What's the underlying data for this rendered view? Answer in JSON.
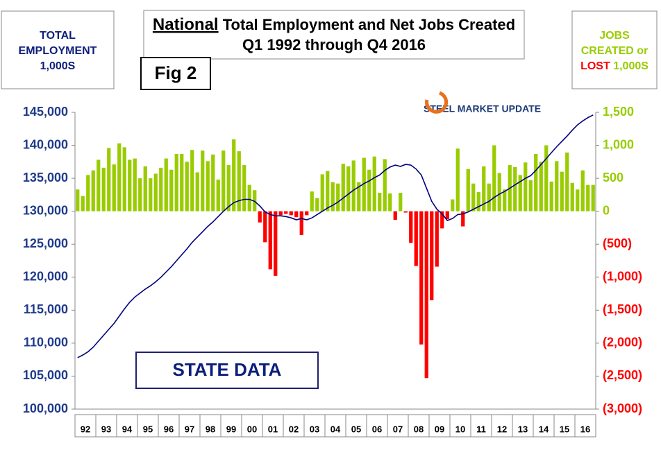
{
  "chart_data": {
    "type": "combo",
    "title": {
      "emphasis": "National",
      "rest": "Total Employment and Net Jobs Created",
      "subtitle": "Q1 1992 through Q4 2016"
    },
    "figure_label": "Fig 2",
    "left_axis_label": [
      "TOTAL",
      "EMPLOYMENT",
      "1,000S"
    ],
    "right_axis_label": [
      [
        {
          "text": "JOBS",
          "color": "#99cc00"
        }
      ],
      [
        {
          "text": "CREATED or",
          "color": "#99cc00"
        }
      ],
      [
        {
          "text": "LOST",
          "color": "#ff0000"
        },
        {
          "text": "1,000S",
          "color": "#99cc00"
        }
      ]
    ],
    "logo": "STEEL MARKET UPDATE",
    "annotation": "STATE DATA",
    "categories": [
      "92",
      null,
      null,
      null,
      "93",
      null,
      null,
      null,
      "94",
      null,
      null,
      null,
      "95",
      null,
      null,
      null,
      "96",
      null,
      null,
      null,
      "97",
      null,
      null,
      null,
      "98",
      null,
      null,
      null,
      "99",
      null,
      null,
      null,
      "00",
      null,
      null,
      null,
      "01",
      null,
      null,
      null,
      "02",
      null,
      null,
      null,
      "03",
      null,
      null,
      null,
      "04",
      null,
      null,
      null,
      "05",
      null,
      null,
      null,
      "06",
      null,
      null,
      null,
      "07",
      null,
      null,
      null,
      "08",
      null,
      null,
      null,
      "09",
      null,
      null,
      null,
      "10",
      null,
      null,
      null,
      "11",
      null,
      null,
      null,
      "12",
      null,
      null,
      null,
      "13",
      null,
      null,
      null,
      "14",
      null,
      null,
      null,
      "15",
      null,
      null,
      null,
      "16",
      null,
      null,
      null
    ],
    "series": [
      {
        "type": "bar",
        "axis": "y2",
        "color": "#99cc00",
        "negative_color": "#ff0000",
        "values": [
          330,
          230,
          550,
          620,
          780,
          660,
          960,
          710,
          1030,
          970,
          780,
          800,
          500,
          680,
          500,
          570,
          660,
          800,
          630,
          870,
          870,
          750,
          930,
          590,
          920,
          760,
          860,
          480,
          920,
          700,
          1090,
          910,
          700,
          400,
          320,
          -170,
          -470,
          -880,
          -980,
          -60,
          -40,
          -60,
          -90,
          -360,
          -60,
          300,
          200,
          560,
          610,
          440,
          420,
          720,
          680,
          770,
          440,
          810,
          630,
          830,
          280,
          790,
          270,
          -130,
          280,
          -20,
          -480,
          -830,
          -2020,
          -2530,
          -1350,
          -840,
          -260,
          -120,
          180,
          950,
          -230,
          640,
          420,
          290,
          680,
          420,
          1000,
          580,
          330,
          700,
          670,
          550,
          740,
          470,
          870,
          750,
          1000,
          450,
          760,
          600,
          890,
          430,
          330,
          620,
          400,
          400
        ]
      },
      {
        "type": "line",
        "axis": "y",
        "color": "#000080",
        "values": [
          107800,
          108200,
          108700,
          109400,
          110300,
          111200,
          112100,
          113000,
          114100,
          115200,
          116200,
          117000,
          117600,
          118200,
          118700,
          119300,
          120000,
          120800,
          121600,
          122500,
          123400,
          124300,
          125300,
          126100,
          126900,
          127700,
          128400,
          129200,
          130000,
          130700,
          131300,
          131600,
          131800,
          131800,
          131500,
          130800,
          129900,
          129500,
          129300,
          129300,
          129200,
          129000,
          128700,
          128900,
          128700,
          129000,
          129500,
          130000,
          130500,
          130900,
          131400,
          132000,
          132600,
          133200,
          133700,
          134200,
          134600,
          135100,
          135500,
          136200,
          136700,
          137000,
          136800,
          137100,
          137000,
          136400,
          135500,
          133500,
          131500,
          130300,
          129600,
          128600,
          128900,
          129500,
          129600,
          129900,
          130300,
          130700,
          131100,
          131500,
          132100,
          132600,
          133000,
          133500,
          134000,
          134500,
          135000,
          135400,
          136200,
          137100,
          138000,
          138900,
          139800,
          140600,
          141400,
          142300,
          143100,
          143700,
          144200,
          144600
        ]
      }
    ],
    "ylim": [
      100000,
      145000
    ],
    "yticks": [
      {
        "value": 100000,
        "label": "100,000"
      },
      {
        "value": 105000,
        "label": "105,000"
      },
      {
        "value": 110000,
        "label": "110,000"
      },
      {
        "value": 115000,
        "label": "115,000"
      },
      {
        "value": 120000,
        "label": "120,000"
      },
      {
        "value": 125000,
        "label": "125,000"
      },
      {
        "value": 130000,
        "label": "130,000"
      },
      {
        "value": 135000,
        "label": "135,000"
      },
      {
        "value": 140000,
        "label": "140,000"
      },
      {
        "value": 145000,
        "label": "145,000"
      }
    ],
    "y2lim": [
      -3000,
      1500
    ],
    "y2ticks": [
      {
        "value": -3000,
        "label": "(3,000)"
      },
      {
        "value": -2500,
        "label": "(2,500)"
      },
      {
        "value": -2000,
        "label": "(2,000)"
      },
      {
        "value": -1500,
        "label": "(1,500)"
      },
      {
        "value": -1000,
        "label": "(1,000)"
      },
      {
        "value": -500,
        "label": "(500)"
      },
      0,
      500,
      {
        "value": 1000,
        "label": "1,000"
      },
      {
        "value": 1500,
        "label": "1,500"
      }
    ]
  }
}
